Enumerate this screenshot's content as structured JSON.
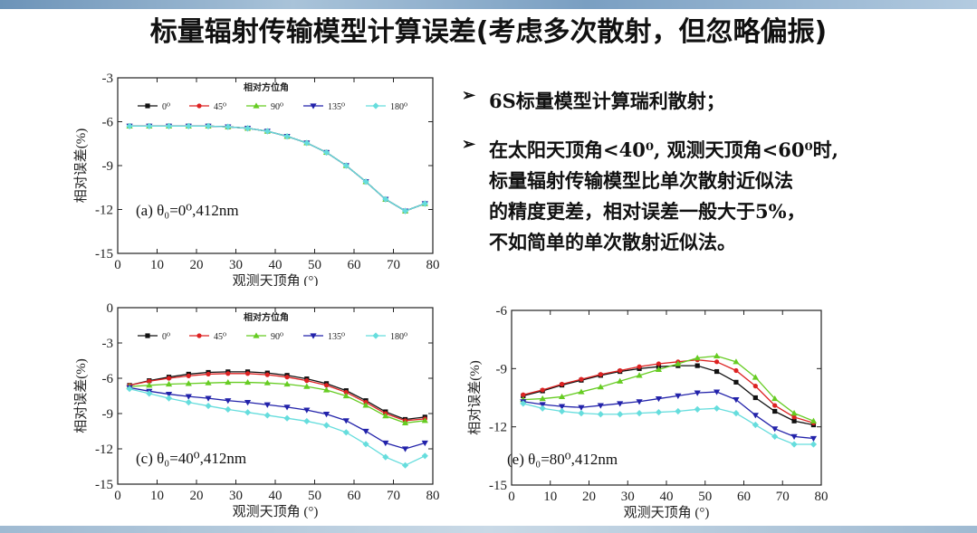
{
  "title": "标量辐射传输模型计算误差(考虑多次散射，但忽略偏振)",
  "bullets": [
    {
      "lines": [
        "6S标量模型计算瑞利散射；"
      ]
    },
    {
      "lines": [
        "在太阳天顶角<40⁰, 观测天顶角<60⁰时,",
        "标量辐射传输模型比单次散射近似法",
        "的精度更差，相对误差一般大于5%，",
        "不如简单的单次散射近似法。"
      ]
    }
  ],
  "chart_data": [
    {
      "type": "line",
      "panel_label": "(a) θ₀=0⁰,412nm",
      "xlabel": "观测天顶角 (°)",
      "ylabel": "相对误差(%)",
      "xlim": [
        0,
        80
      ],
      "ylim": [
        -15,
        -3
      ],
      "xticks": [
        0,
        10,
        20,
        30,
        40,
        50,
        60,
        70,
        80
      ],
      "yticks": [
        -3,
        -6,
        -9,
        -12,
        -15
      ],
      "legend_title": "相对方位角",
      "x": [
        3,
        8,
        13,
        18,
        23,
        28,
        33,
        38,
        43,
        48,
        53,
        58,
        63,
        68,
        73,
        78
      ],
      "series": [
        {
          "name": "0⁰",
          "color": "#111111",
          "marker": "square",
          "values": [
            -6.3,
            -6.3,
            -6.3,
            -6.3,
            -6.3,
            -6.35,
            -6.45,
            -6.65,
            -7.0,
            -7.45,
            -8.1,
            -9.0,
            -10.1,
            -11.3,
            -12.1,
            -11.6
          ]
        },
        {
          "name": "45⁰",
          "color": "#dd2222",
          "marker": "circle",
          "values": [
            -6.3,
            -6.3,
            -6.3,
            -6.3,
            -6.3,
            -6.35,
            -6.45,
            -6.65,
            -7.0,
            -7.45,
            -8.1,
            -9.0,
            -10.1,
            -11.3,
            -12.1,
            -11.6
          ]
        },
        {
          "name": "90⁰",
          "color": "#66cc22",
          "marker": "triangle-up",
          "values": [
            -6.3,
            -6.3,
            -6.3,
            -6.3,
            -6.3,
            -6.35,
            -6.45,
            -6.65,
            -7.0,
            -7.45,
            -8.1,
            -9.0,
            -10.1,
            -11.3,
            -12.1,
            -11.6
          ]
        },
        {
          "name": "135⁰",
          "color": "#2222aa",
          "marker": "triangle-down",
          "values": [
            -6.3,
            -6.3,
            -6.3,
            -6.3,
            -6.3,
            -6.35,
            -6.45,
            -6.65,
            -7.0,
            -7.45,
            -8.1,
            -9.0,
            -10.1,
            -11.3,
            -12.1,
            -11.6
          ]
        },
        {
          "name": "180⁰",
          "color": "#66dddd",
          "marker": "diamond",
          "values": [
            -6.3,
            -6.3,
            -6.3,
            -6.3,
            -6.3,
            -6.35,
            -6.45,
            -6.65,
            -7.0,
            -7.45,
            -8.1,
            -9.0,
            -10.1,
            -11.3,
            -12.1,
            -11.6
          ]
        }
      ]
    },
    {
      "type": "line",
      "panel_label": "(c) θ₀=40⁰,412nm",
      "xlabel": "观测天顶角 (°)",
      "ylabel": "相对误差(%)",
      "xlim": [
        0,
        80
      ],
      "ylim": [
        -15,
        0
      ],
      "xticks": [
        0,
        10,
        20,
        30,
        40,
        50,
        60,
        70,
        80
      ],
      "yticks": [
        0,
        -3,
        -6,
        -9,
        -12,
        -15
      ],
      "legend_title": "相对方位角",
      "x": [
        3,
        8,
        13,
        18,
        23,
        28,
        33,
        38,
        43,
        48,
        53,
        58,
        63,
        68,
        73,
        78
      ],
      "series": [
        {
          "name": "0⁰",
          "color": "#111111",
          "marker": "square",
          "values": [
            -6.6,
            -6.2,
            -5.9,
            -5.65,
            -5.5,
            -5.45,
            -5.45,
            -5.55,
            -5.75,
            -6.05,
            -6.45,
            -7.05,
            -7.9,
            -8.85,
            -9.5,
            -9.3
          ]
        },
        {
          "name": "45⁰",
          "color": "#dd2222",
          "marker": "circle",
          "values": [
            -6.6,
            -6.25,
            -6.0,
            -5.8,
            -5.65,
            -5.6,
            -5.6,
            -5.7,
            -5.9,
            -6.2,
            -6.6,
            -7.2,
            -8.05,
            -9.0,
            -9.6,
            -9.45
          ]
        },
        {
          "name": "90⁰",
          "color": "#66cc22",
          "marker": "triangle-up",
          "values": [
            -6.7,
            -6.6,
            -6.5,
            -6.45,
            -6.4,
            -6.35,
            -6.35,
            -6.4,
            -6.5,
            -6.7,
            -7.0,
            -7.5,
            -8.3,
            -9.2,
            -9.8,
            -9.6
          ]
        },
        {
          "name": "135⁰",
          "color": "#2222aa",
          "marker": "triangle-down",
          "values": [
            -6.8,
            -7.1,
            -7.35,
            -7.55,
            -7.7,
            -7.9,
            -8.05,
            -8.25,
            -8.45,
            -8.7,
            -9.05,
            -9.6,
            -10.5,
            -11.5,
            -12.0,
            -11.5
          ]
        },
        {
          "name": "180⁰",
          "color": "#66dddd",
          "marker": "diamond",
          "values": [
            -6.9,
            -7.3,
            -7.7,
            -8.05,
            -8.35,
            -8.65,
            -8.9,
            -9.15,
            -9.4,
            -9.65,
            -10.0,
            -10.6,
            -11.6,
            -12.7,
            -13.4,
            -12.6
          ]
        }
      ]
    },
    {
      "type": "line",
      "panel_label": "(e) θ₀=80⁰,412nm",
      "xlabel": "观测天顶角 (°)",
      "ylabel": "相对误差(%)",
      "xlim": [
        0,
        80
      ],
      "ylim": [
        -15,
        -6
      ],
      "xticks": [
        0,
        10,
        20,
        30,
        40,
        50,
        60,
        70,
        80
      ],
      "yticks": [
        -6,
        -9,
        -12,
        -15
      ],
      "x": [
        3,
        8,
        13,
        18,
        23,
        28,
        33,
        38,
        43,
        48,
        53,
        58,
        63,
        68,
        73,
        78
      ],
      "series": [
        {
          "name": "0⁰",
          "color": "#111111",
          "marker": "square",
          "values": [
            -10.4,
            -10.15,
            -9.85,
            -9.6,
            -9.35,
            -9.15,
            -9.0,
            -8.9,
            -8.85,
            -8.85,
            -9.15,
            -9.7,
            -10.5,
            -11.2,
            -11.7,
            -11.9
          ]
        },
        {
          "name": "45⁰",
          "color": "#dd2222",
          "marker": "circle",
          "values": [
            -10.35,
            -10.1,
            -9.8,
            -9.55,
            -9.3,
            -9.1,
            -8.9,
            -8.75,
            -8.65,
            -8.55,
            -8.65,
            -9.1,
            -9.9,
            -10.9,
            -11.5,
            -11.8
          ]
        },
        {
          "name": "90⁰",
          "color": "#66cc22",
          "marker": "triangle-up",
          "values": [
            -10.6,
            -10.55,
            -10.45,
            -10.2,
            -9.95,
            -9.65,
            -9.35,
            -9.05,
            -8.75,
            -8.45,
            -8.35,
            -8.65,
            -9.45,
            -10.55,
            -11.3,
            -11.7
          ]
        },
        {
          "name": "135⁰",
          "color": "#2222aa",
          "marker": "triangle-down",
          "values": [
            -10.7,
            -10.85,
            -10.95,
            -11.0,
            -10.9,
            -10.8,
            -10.7,
            -10.55,
            -10.4,
            -10.25,
            -10.2,
            -10.6,
            -11.4,
            -12.1,
            -12.5,
            -12.6
          ]
        },
        {
          "name": "180⁰",
          "color": "#66dddd",
          "marker": "diamond",
          "values": [
            -10.8,
            -11.05,
            -11.2,
            -11.3,
            -11.35,
            -11.35,
            -11.3,
            -11.25,
            -11.2,
            -11.1,
            -11.05,
            -11.3,
            -11.9,
            -12.5,
            -12.9,
            -12.9
          ]
        }
      ]
    }
  ]
}
